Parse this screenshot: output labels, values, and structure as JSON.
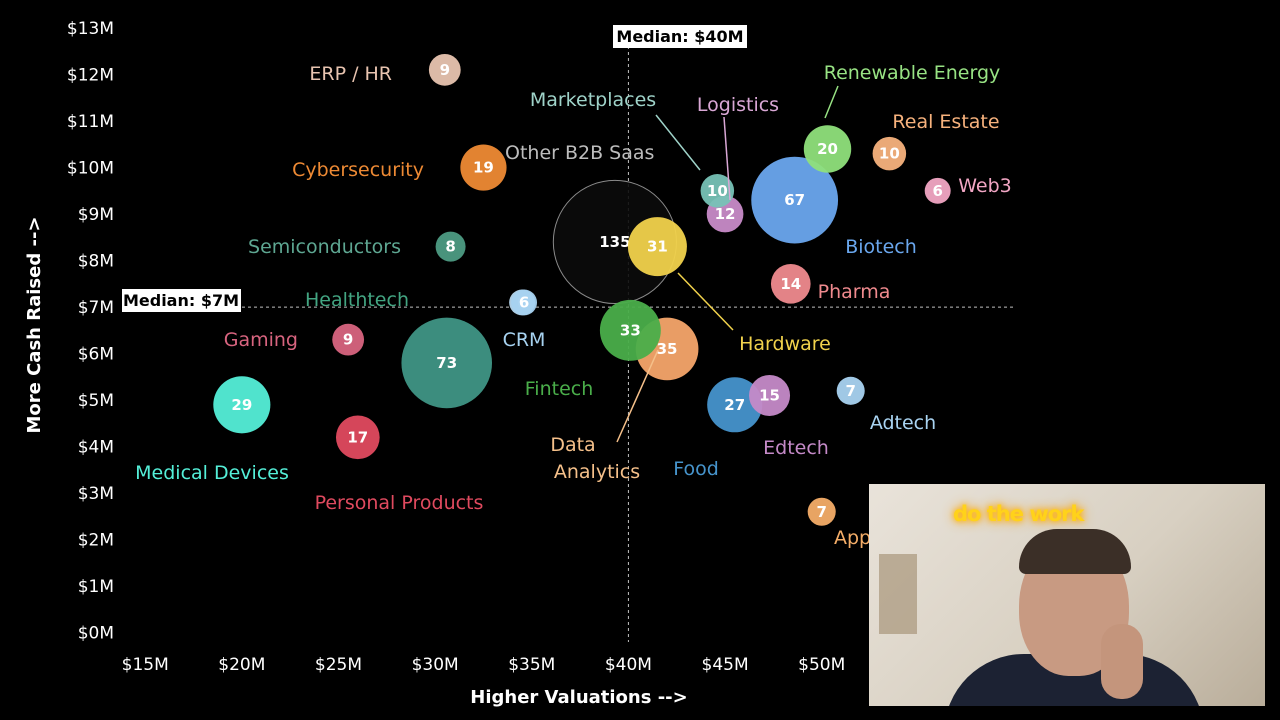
{
  "chart_data": {
    "type": "scatter",
    "variant": "bubble",
    "xlabel": "Higher Valuations -->",
    "ylabel": "More Cash Raised -->",
    "x_ticks": [
      "$15M",
      "$20M",
      "$25M",
      "$30M",
      "$35M",
      "$40M",
      "$45M",
      "$50M"
    ],
    "x_tick_values": [
      15,
      20,
      25,
      30,
      35,
      40,
      45,
      50
    ],
    "y_ticks": [
      "$0M",
      "$1M",
      "$2M",
      "$3M",
      "$4M",
      "$5M",
      "$6M",
      "$7M",
      "$8M",
      "$9M",
      "$10M",
      "$11M",
      "$12M",
      "$13M"
    ],
    "y_tick_values": [
      0,
      1,
      2,
      3,
      4,
      5,
      6,
      7,
      8,
      9,
      10,
      11,
      12,
      13
    ],
    "xlim": [
      13.8,
      60
    ],
    "ylim": [
      -0.2,
      13
    ],
    "grid": false,
    "median_x": {
      "label": "Median: $40M",
      "value": 40
    },
    "median_y": {
      "label": "Median: $7M",
      "value": 7
    },
    "points": [
      {
        "name": "ERP / HR",
        "x": 30.5,
        "y": 12.1,
        "count": 9,
        "color": "#e8c4b0"
      },
      {
        "name": "Cybersecurity",
        "x": 32.5,
        "y": 10.0,
        "count": 19,
        "color": "#ee8a34"
      },
      {
        "name": "Semiconductors",
        "x": 30.8,
        "y": 8.3,
        "count": 8,
        "color": "#4d9b83"
      },
      {
        "name": "Healthtech",
        "x": 34.5,
        "y": 7.1,
        "count": 6,
        "color": "#b7d8ef"
      },
      {
        "name": "Gaming",
        "x": 25.5,
        "y": 6.3,
        "count": 9,
        "color": "#d8647f"
      },
      {
        "name": "Medical Devices",
        "x": 20.0,
        "y": 4.9,
        "count": 29,
        "color": "#54efd8"
      },
      {
        "name": "Personal Products",
        "x": 26.0,
        "y": 4.2,
        "count": 17,
        "color": "#e04a5f"
      },
      {
        "name": "",
        "x": 30.6,
        "y": 5.8,
        "count": 73,
        "color": "#3f9585"
      },
      {
        "name": "Other B2B Saas",
        "x": 39.3,
        "y": 8.4,
        "count": 135,
        "color": "#0b0b0b"
      },
      {
        "name": "Data Analytics",
        "x": 42.0,
        "y": 6.1,
        "count": 35,
        "color": "#f5a56a"
      },
      {
        "name": "Fintech",
        "x": 40.1,
        "y": 6.5,
        "count": 33,
        "color": "#4aae4a"
      },
      {
        "name": "Hardware",
        "x": 41.5,
        "y": 8.3,
        "count": 31,
        "color": "#f1d24c"
      },
      {
        "name": "Marketplaces",
        "x": 44.6,
        "y": 9.5,
        "count": 10,
        "color": "#77c2b6"
      },
      {
        "name": "Logistics",
        "x": 45.0,
        "y": 9.0,
        "count": 12,
        "color": "#c88bc8"
      },
      {
        "name": "Biotech",
        "x": 48.6,
        "y": 9.3,
        "count": 67,
        "color": "#6aa7ee"
      },
      {
        "name": "Renewable Energy",
        "x": 50.3,
        "y": 10.4,
        "count": 20,
        "color": "#8fe07b"
      },
      {
        "name": "Real Estate",
        "x": 53.5,
        "y": 10.3,
        "count": 10,
        "color": "#f7b27d"
      },
      {
        "name": "Web3",
        "x": 56.0,
        "y": 9.5,
        "count": 6,
        "color": "#f2a6c4"
      },
      {
        "name": "Pharma",
        "x": 48.4,
        "y": 7.5,
        "count": 14,
        "color": "#ef8a8e"
      },
      {
        "name": "CRM",
        "x": 34.6,
        "y": 7.1,
        "count": 6,
        "color": "#a7d2f0"
      },
      {
        "name": "Food",
        "x": 45.5,
        "y": 4.9,
        "count": 27,
        "color": "#4694cc"
      },
      {
        "name": "Edtech",
        "x": 47.3,
        "y": 5.1,
        "count": 15,
        "color": "#c58ac8"
      },
      {
        "name": "Adtech",
        "x": 51.5,
        "y": 5.2,
        "count": 7,
        "color": "#a9d3f1"
      },
      {
        "name": "App",
        "x": 50.0,
        "y": 2.6,
        "count": 7,
        "color": "#f4ad68"
      }
    ],
    "label_colors": {
      "ERP / HR": "#e8c4b0",
      "Cybersecurity": "#ee8a34",
      "Semiconductors": "#5ea792",
      "Healthtech": "#43a582",
      "Gaming": "#d8647f",
      "Medical Devices": "#54efd8",
      "Personal Products": "#e04a5f",
      "Other B2B Saas": "#bdbdbd",
      "Data Analytics": "#f5c08a",
      "Fintech": "#4aae4a",
      "Hardware": "#f1d24c",
      "Marketplaces": "#9fd3c9",
      "Logistics": "#d9a7d5",
      "Biotech": "#6aa7ee",
      "Renewable Energy": "#98e384",
      "Real Estate": "#f7b27d",
      "Web3": "#f2a6c4",
      "Pharma": "#ef8a8e",
      "CRM": "#a7d2f0",
      "Food": "#4694cc",
      "Edtech": "#c58ac8",
      "Adtech": "#a9d3f1",
      "App": "#f4ad68"
    }
  },
  "webcam": {
    "neon_text": "do the work"
  },
  "colors": {
    "background": "#000000",
    "median_line": "#bfbfbf"
  }
}
